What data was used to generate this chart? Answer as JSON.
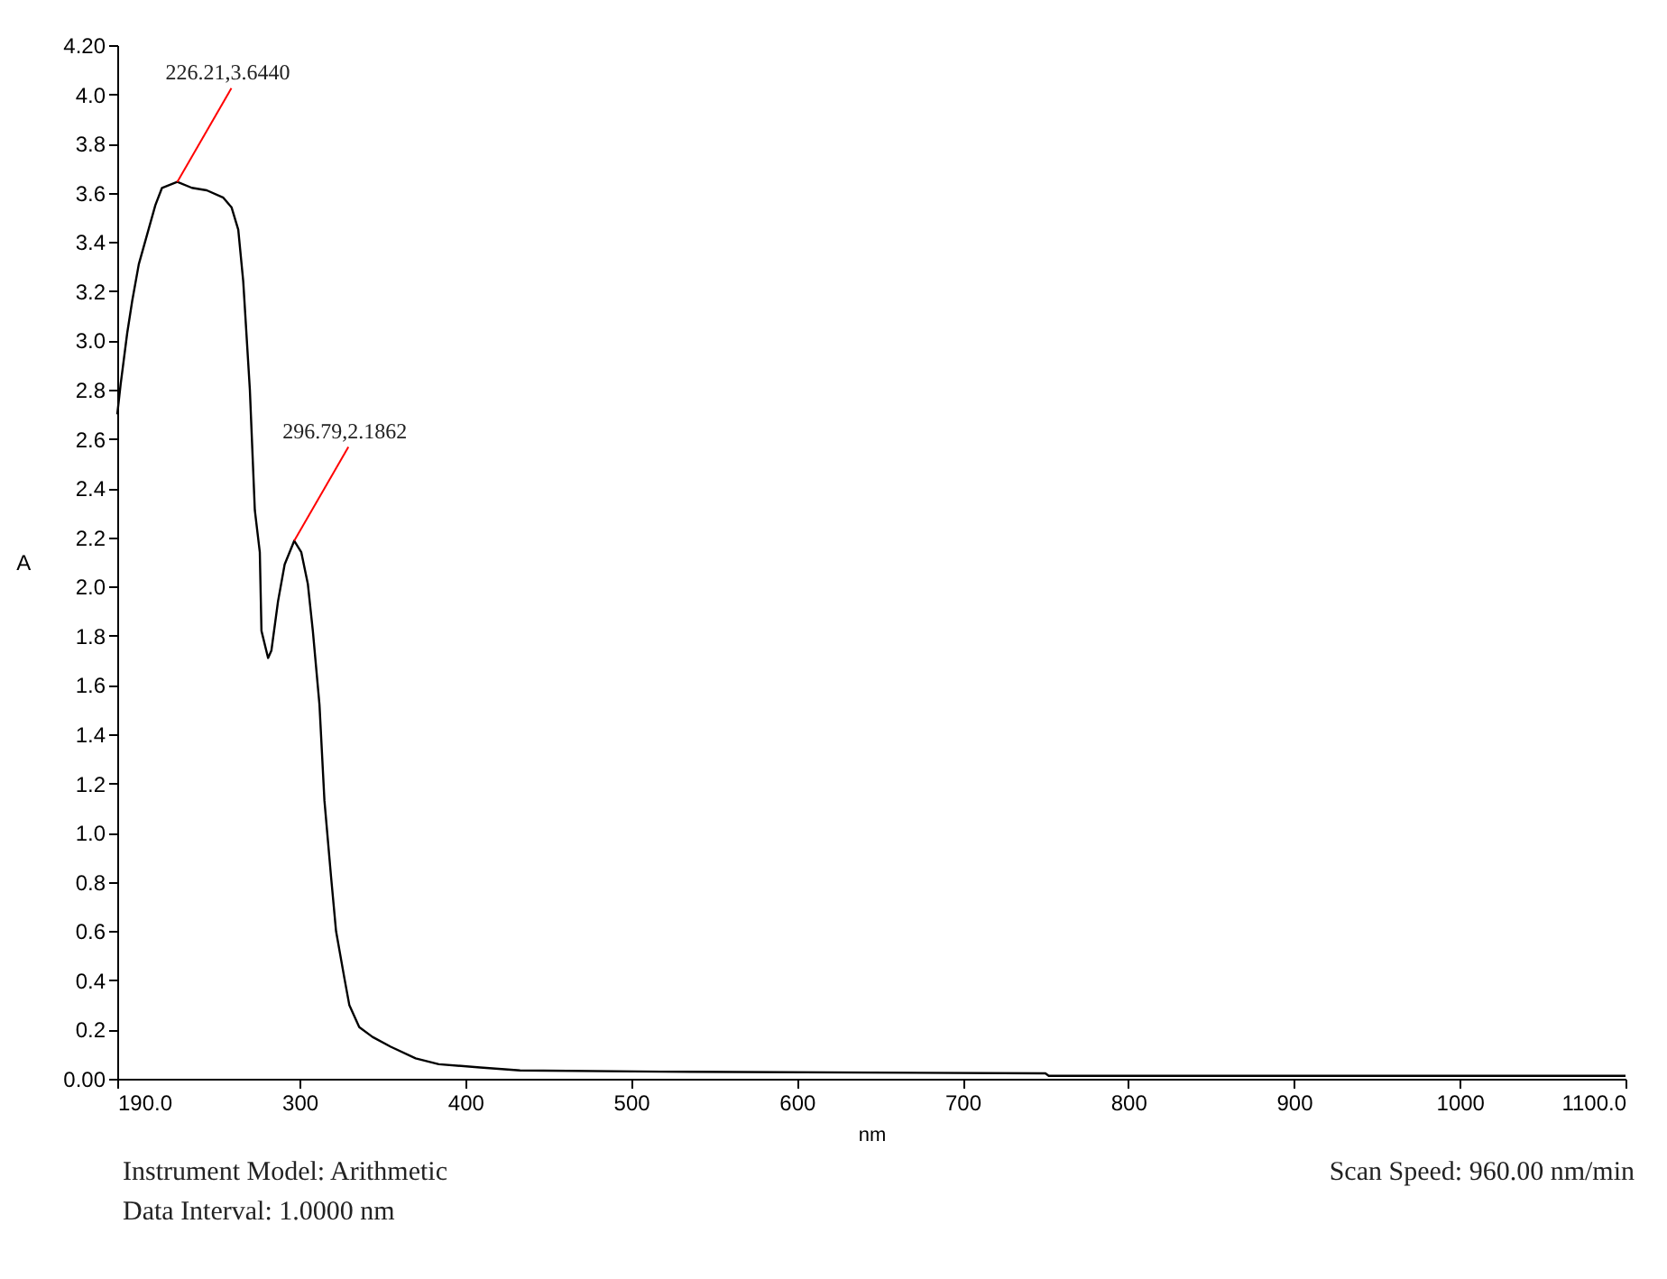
{
  "chart_data": {
    "type": "line",
    "xlabel": "nm",
    "ylabel": "A",
    "x": [
      190,
      192,
      196,
      199,
      203,
      208,
      213,
      217,
      226.21,
      235,
      244,
      254,
      259,
      263,
      266,
      270,
      273,
      276,
      277,
      281,
      283,
      287,
      291,
      296.79,
      301,
      305,
      308,
      312,
      315,
      319,
      322,
      327,
      330,
      336,
      344,
      355,
      370,
      384,
      409,
      433,
      518,
      750,
      752,
      1100
    ],
    "series": [
      {
        "color": "#000000",
        "values": [
          2.7,
          2.82,
          3.03,
          3.16,
          3.31,
          3.43,
          3.55,
          3.62,
          3.644,
          3.62,
          3.61,
          3.58,
          3.54,
          3.45,
          3.24,
          2.8,
          2.31,
          2.14,
          1.82,
          1.71,
          1.74,
          1.94,
          2.09,
          2.186,
          2.14,
          2.01,
          1.82,
          1.52,
          1.13,
          0.82,
          0.6,
          0.41,
          0.3,
          0.21,
          0.17,
          0.13,
          0.083,
          0.059,
          0.046,
          0.034,
          0.029,
          0.022,
          0.012,
          0.012
        ]
      }
    ],
    "xlim": [
      190,
      1100
    ],
    "xticks": [
      {
        "value": 190,
        "label": "190.0"
      },
      300,
      400,
      500,
      600,
      700,
      800,
      900,
      1000,
      {
        "value": 1100,
        "label": "1100.0"
      }
    ],
    "ylim": [
      0,
      4.2
    ],
    "yticks": [
      {
        "value": 0,
        "label": "0.00"
      },
      0.2,
      0.4,
      0.6,
      0.8,
      {
        "value": 1,
        "label": "1.0"
      },
      1.2,
      1.4,
      1.6,
      1.8,
      {
        "value": 2,
        "label": "2.0"
      },
      2.2,
      2.4,
      2.6,
      2.8,
      {
        "value": 3,
        "label": "3.0"
      },
      3.2,
      3.4,
      3.6,
      3.8,
      {
        "value": 4,
        "label": "4.0"
      },
      {
        "value": 4.2,
        "label": "4.20"
      }
    ],
    "grid": false,
    "marker": "none",
    "line_style": "solid",
    "annotations": [
      {
        "text": "226.21,3.6440",
        "x": 226.21,
        "y": 3.644
      },
      {
        "text": "296.79,2.1862",
        "x": 296.79,
        "y": 2.186
      },
      "Instrument Model: Arithmetic",
      "Data Interval: 1.0000 nm",
      "Scan Speed: 960.00 nm/min"
    ]
  }
}
